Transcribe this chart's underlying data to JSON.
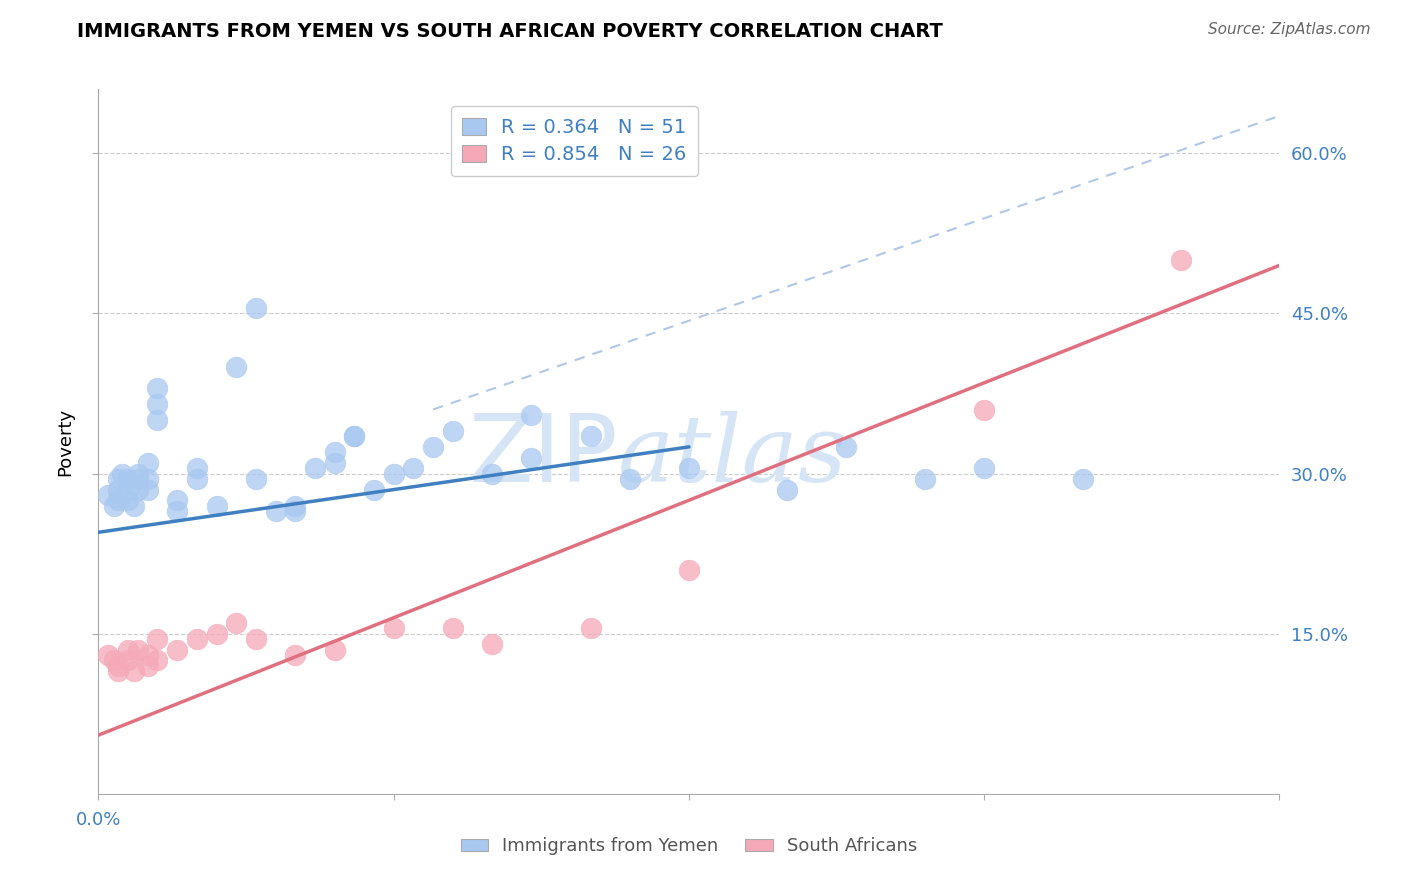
{
  "title": "IMMIGRANTS FROM YEMEN VS SOUTH AFRICAN POVERTY CORRELATION CHART",
  "source": "Source: ZipAtlas.com",
  "ylabel": "Poverty",
  "ytick_labels": [
    "15.0%",
    "30.0%",
    "45.0%",
    "60.0%"
  ],
  "ytick_values": [
    0.15,
    0.3,
    0.45,
    0.6
  ],
  "xlim": [
    0.0,
    0.6
  ],
  "ylim": [
    0.0,
    0.66
  ],
  "legend_r1": "R = 0.364",
  "legend_n1": "N = 51",
  "legend_r2": "R = 0.854",
  "legend_n2": "N = 26",
  "blue_color": "#A8C8F0",
  "pink_color": "#F5A8B8",
  "blue_line_color": "#4080C0",
  "pink_line_color": "#E07080",
  "dashed_line_color": "#B0C8E8",
  "watermark_color": "#D5E5F5",
  "blue_scatter_x": [
    0.005,
    0.008,
    0.01,
    0.01,
    0.01,
    0.012,
    0.015,
    0.015,
    0.015,
    0.018,
    0.02,
    0.02,
    0.02,
    0.025,
    0.025,
    0.025,
    0.03,
    0.03,
    0.03,
    0.04,
    0.04,
    0.05,
    0.05,
    0.06,
    0.07,
    0.08,
    0.09,
    0.1,
    0.1,
    0.11,
    0.12,
    0.12,
    0.13,
    0.14,
    0.15,
    0.16,
    0.17,
    0.18,
    0.2,
    0.22,
    0.25,
    0.27,
    0.3,
    0.35,
    0.38,
    0.42,
    0.45,
    0.5,
    0.22,
    0.13,
    0.08
  ],
  "blue_scatter_y": [
    0.28,
    0.27,
    0.295,
    0.285,
    0.275,
    0.3,
    0.295,
    0.285,
    0.275,
    0.27,
    0.3,
    0.295,
    0.285,
    0.31,
    0.295,
    0.285,
    0.38,
    0.365,
    0.35,
    0.275,
    0.265,
    0.305,
    0.295,
    0.27,
    0.4,
    0.295,
    0.265,
    0.27,
    0.265,
    0.305,
    0.32,
    0.31,
    0.335,
    0.285,
    0.3,
    0.305,
    0.325,
    0.34,
    0.3,
    0.315,
    0.335,
    0.295,
    0.305,
    0.285,
    0.325,
    0.295,
    0.305,
    0.295,
    0.355,
    0.335,
    0.455
  ],
  "pink_scatter_x": [
    0.005,
    0.008,
    0.01,
    0.01,
    0.015,
    0.015,
    0.018,
    0.02,
    0.025,
    0.025,
    0.03,
    0.03,
    0.04,
    0.05,
    0.06,
    0.07,
    0.08,
    0.1,
    0.12,
    0.15,
    0.18,
    0.2,
    0.25,
    0.3,
    0.45,
    0.55
  ],
  "pink_scatter_y": [
    0.13,
    0.125,
    0.12,
    0.115,
    0.135,
    0.125,
    0.115,
    0.135,
    0.13,
    0.12,
    0.145,
    0.125,
    0.135,
    0.145,
    0.15,
    0.16,
    0.145,
    0.13,
    0.135,
    0.155,
    0.155,
    0.14,
    0.155,
    0.21,
    0.36,
    0.5
  ],
  "blue_line_x": [
    0.0,
    0.3
  ],
  "blue_line_y": [
    0.245,
    0.325
  ],
  "pink_line_x": [
    0.0,
    0.6
  ],
  "pink_line_y": [
    0.055,
    0.495
  ],
  "dashed_line_x": [
    0.17,
    0.6
  ],
  "dashed_line_y": [
    0.36,
    0.635
  ]
}
